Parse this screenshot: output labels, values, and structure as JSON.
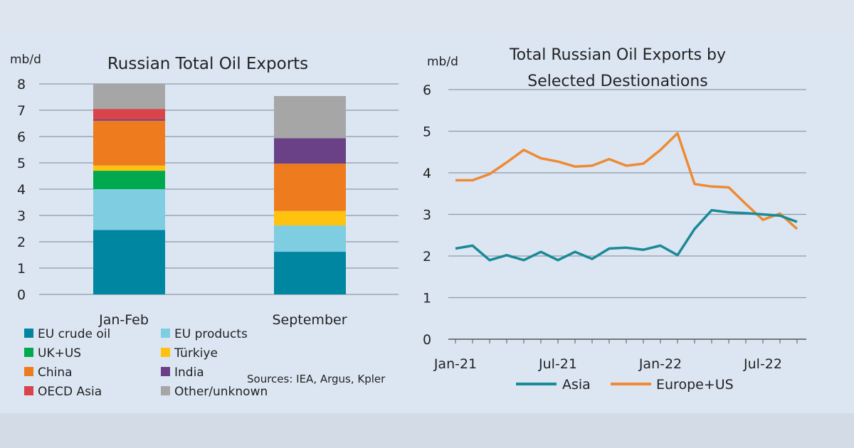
{
  "chart_data": [
    {
      "type": "bar",
      "stacked": true,
      "title": "Russian Total Oil Exports",
      "ylabel": "mb/d",
      "ylim": [
        0,
        8
      ],
      "yticks": [
        "0",
        "1",
        "2",
        "3",
        "4",
        "5",
        "6",
        "7",
        "8"
      ],
      "categories": [
        "Jan-Feb",
        "September"
      ],
      "grid": true,
      "legend_position": "bottom",
      "source": "Sources: IEA, Argus, Kpler",
      "series": [
        {
          "name": "EU crude oil",
          "color": "#0086a0",
          "values": [
            2.45,
            1.62
          ]
        },
        {
          "name": "EU products",
          "color": "#7fcde0",
          "values": [
            1.55,
            1.0
          ]
        },
        {
          "name": "UK+US",
          "color": "#00a94f",
          "values": [
            0.7,
            0
          ]
        },
        {
          "name": "Türkiye",
          "color": "#ffc20e",
          "values": [
            0.2,
            0.55
          ]
        },
        {
          "name": "China",
          "color": "#ee7b1e",
          "values": [
            1.7,
            1.8
          ]
        },
        {
          "name": "India",
          "color": "#6a4187",
          "values": [
            0.05,
            0.97
          ]
        },
        {
          "name": "OECD Asia",
          "color": "#d9434a",
          "values": [
            0.4,
            0
          ]
        },
        {
          "name": "Other/unknown",
          "color": "#a6a6a6",
          "values": [
            0.95,
            1.6
          ]
        }
      ]
    },
    {
      "type": "line",
      "title": "Total Russian Oil Exports by Selected Destionations",
      "title_lines": [
        "Total Russian Oil Exports by",
        "Selected Destionations"
      ],
      "ylabel": "mb/d",
      "ylim": [
        0,
        6
      ],
      "yticks": [
        "0",
        "1",
        "2",
        "3",
        "4",
        "5",
        "6"
      ],
      "x": [
        "Jan-21",
        "Feb-21",
        "Mar-21",
        "Apr-21",
        "May-21",
        "Jun-21",
        "Jul-21",
        "Aug-21",
        "Sep-21",
        "Oct-21",
        "Nov-21",
        "Dec-21",
        "Jan-22",
        "Feb-22",
        "Mar-22",
        "Apr-22",
        "May-22",
        "Jun-22",
        "Jul-22",
        "Aug-22",
        "Sep-22"
      ],
      "xticks": [
        "Jan-21",
        "Jul-21",
        "Jan-22",
        "Jul-22"
      ],
      "grid": true,
      "legend_position": "bottom",
      "series": [
        {
          "name": "Asia",
          "color": "#1a8a96",
          "values": [
            2.18,
            2.25,
            1.9,
            2.02,
            1.9,
            2.1,
            1.9,
            2.1,
            1.93,
            2.18,
            2.2,
            2.15,
            2.25,
            2.02,
            2.65,
            3.1,
            3.05,
            3.03,
            3.0,
            2.97,
            2.82
          ]
        },
        {
          "name": "Europe+US",
          "color": "#ee8a33",
          "values": [
            3.82,
            3.82,
            3.97,
            4.25,
            4.55,
            4.35,
            4.27,
            4.15,
            4.17,
            4.33,
            4.17,
            4.22,
            4.55,
            4.95,
            3.73,
            3.67,
            3.65,
            3.25,
            2.87,
            3.02,
            2.65
          ]
        }
      ]
    }
  ]
}
